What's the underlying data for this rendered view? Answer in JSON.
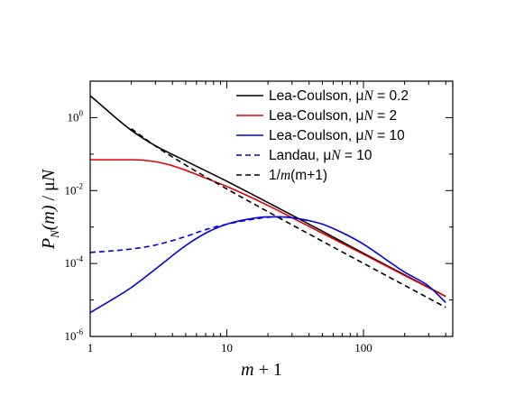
{
  "chart_data": {
    "type": "line",
    "xlabel": {
      "var": "m",
      "rest": " + 1"
    },
    "ylabel": {
      "var1": "P",
      "sub": "N",
      "paren": "(m)",
      "slash": " / ",
      "mu": "μ",
      "var2": "N"
    },
    "xscale": "log",
    "yscale": "log",
    "xlim": [
      1,
      450
    ],
    "ylim": [
      1e-06,
      10
    ],
    "xticks": [
      {
        "value": 1,
        "label": "1"
      },
      {
        "value": 10,
        "label": "10"
      },
      {
        "value": 100,
        "label": "100"
      }
    ],
    "yticks": [
      {
        "value": 1e-06,
        "base": "10",
        "exp": "-6"
      },
      {
        "value": 0.0001,
        "base": "10",
        "exp": "-4"
      },
      {
        "value": 0.01,
        "base": "10",
        "exp": "-2"
      },
      {
        "value": 1,
        "base": "10",
        "exp": "0"
      }
    ],
    "grid": false,
    "legend_position": "top-right",
    "series": [
      {
        "name": "Lea-Coulson, μN = 0.2",
        "legend": {
          "text": "Lea-Coulson, ",
          "mu": "μ",
          "var": "N",
          "eq": " = 0.2"
        },
        "color": "#000000",
        "dash": "solid",
        "x": [
          1,
          2,
          3,
          5,
          10,
          20,
          50,
          100,
          200,
          400
        ],
        "y": [
          4.0,
          0.45,
          0.17,
          0.065,
          0.018,
          0.0047,
          0.00077,
          0.00019,
          4.9e-05,
          1.25e-05
        ]
      },
      {
        "name": "Lea-Coulson, μN = 2",
        "legend": {
          "text": "Lea-Coulson, ",
          "mu": "μ",
          "var": "N",
          "eq": " = 2"
        },
        "color": "#e00000",
        "dash": "solid",
        "x": [
          1,
          2,
          3,
          4,
          5,
          7,
          10,
          20,
          30,
          50,
          100,
          200,
          400
        ],
        "y": [
          0.07,
          0.07,
          0.062,
          0.048,
          0.036,
          0.022,
          0.013,
          0.0039,
          0.0018,
          0.00068,
          0.00018,
          4.7e-05,
          1.25e-05
        ]
      },
      {
        "name": "Lea-Coulson, μN = 10",
        "legend": {
          "text": "Lea-Coulson, ",
          "mu": "μ",
          "var": "N",
          "eq": " = 10"
        },
        "color": "#0000e0",
        "dash": "solid",
        "x": [
          1,
          2,
          3,
          5,
          7,
          10,
          15,
          20,
          25,
          30,
          40,
          50,
          70,
          100,
          150,
          200,
          300,
          400
        ],
        "y": [
          4.5e-06,
          2.2e-05,
          7e-05,
          0.00031,
          0.00068,
          0.0012,
          0.0017,
          0.0019,
          0.0019,
          0.0018,
          0.0015,
          0.0012,
          0.0007,
          0.00034,
          0.00012,
          5.8e-05,
          2.4e-05,
          8.5e-06
        ]
      },
      {
        "name": "Landau, μN = 10",
        "legend": {
          "text": "Landau, ",
          "mu": "μ",
          "var": "N",
          "eq": " = 10"
        },
        "color": "#0000e0",
        "dash": "dashed",
        "x": [
          1,
          2,
          3,
          5,
          7,
          10,
          15,
          20,
          25,
          30,
          40
        ],
        "y": [
          0.0002,
          0.00025,
          0.00032,
          0.00055,
          0.00085,
          0.0012,
          0.0016,
          0.00185,
          0.0019,
          0.0018,
          0.0015
        ]
      },
      {
        "name": "1/m(m+1)",
        "legend": {
          "text": "1/",
          "var": "m",
          "eq": "(m+1)"
        },
        "color": "#000000",
        "dash": "dashed",
        "x": [
          2,
          3,
          5,
          10,
          20,
          50,
          100,
          200,
          400
        ],
        "y": [
          0.5,
          0.1667,
          0.05,
          0.0111,
          0.00263,
          0.000408,
          0.000101,
          2.51e-05,
          6.27e-06
        ]
      }
    ]
  }
}
